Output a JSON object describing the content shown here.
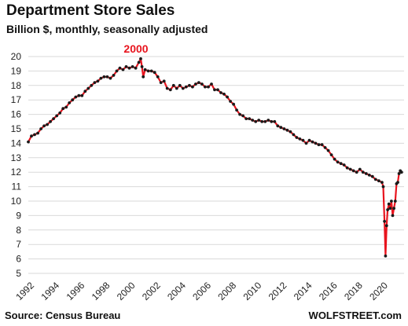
{
  "header": {
    "title": "Department  Store Sales",
    "subtitle": "Billion $, monthly, seasonally adjusted"
  },
  "footer": {
    "source": "Source: Census Bureau",
    "brand": "WOLFSTREET.com"
  },
  "colors": {
    "line": "#e8141e",
    "marker": "#1a1a1a",
    "annotation": "#e8141e",
    "grid": "#d9d9d9"
  },
  "chart_data": {
    "type": "line",
    "title": "Department  Store Sales",
    "subtitle": "Billion $, monthly, seasonally adjusted",
    "xlabel": "",
    "ylabel": "",
    "xlim": [
      1992,
      2021.75
    ],
    "ylim": [
      5,
      20
    ],
    "x_ticks": [
      "1992",
      "1994",
      "1996",
      "1998",
      "2000",
      "2002",
      "2004",
      "2006",
      "2008",
      "2010",
      "2012",
      "2014",
      "2016",
      "2018",
      "2020"
    ],
    "y_ticks": [
      "5",
      "6",
      "7",
      "8",
      "9",
      "10",
      "11",
      "12",
      "13",
      "14",
      "15",
      "16",
      "17",
      "18",
      "19",
      "20"
    ],
    "grid": {
      "horizontal": true,
      "vertical": false
    },
    "annotations": [
      {
        "text": "2000",
        "x": 2000.9,
        "y": 19.85
      }
    ],
    "series": [
      {
        "values": [
          [
            1992.0,
            14.1
          ],
          [
            1992.25,
            14.5
          ],
          [
            1992.5,
            14.6
          ],
          [
            1992.75,
            14.7
          ],
          [
            1993.0,
            15.0
          ],
          [
            1993.25,
            15.2
          ],
          [
            1993.5,
            15.3
          ],
          [
            1993.75,
            15.5
          ],
          [
            1994.0,
            15.7
          ],
          [
            1994.25,
            15.9
          ],
          [
            1994.5,
            16.1
          ],
          [
            1994.75,
            16.4
          ],
          [
            1995.0,
            16.5
          ],
          [
            1995.25,
            16.8
          ],
          [
            1995.5,
            17.0
          ],
          [
            1995.75,
            17.2
          ],
          [
            1996.0,
            17.3
          ],
          [
            1996.25,
            17.3
          ],
          [
            1996.5,
            17.6
          ],
          [
            1996.75,
            17.8
          ],
          [
            1997.0,
            18.0
          ],
          [
            1997.25,
            18.2
          ],
          [
            1997.5,
            18.3
          ],
          [
            1997.75,
            18.5
          ],
          [
            1998.0,
            18.6
          ],
          [
            1998.25,
            18.6
          ],
          [
            1998.5,
            18.5
          ],
          [
            1998.75,
            18.7
          ],
          [
            1999.0,
            19.0
          ],
          [
            1999.25,
            19.2
          ],
          [
            1999.5,
            19.1
          ],
          [
            1999.75,
            19.3
          ],
          [
            2000.0,
            19.2
          ],
          [
            2000.25,
            19.3
          ],
          [
            2000.5,
            19.2
          ],
          [
            2000.75,
            19.6
          ],
          [
            2000.9,
            19.85
          ],
          [
            2001.0,
            19.3
          ],
          [
            2001.1,
            18.6
          ],
          [
            2001.25,
            19.1
          ],
          [
            2001.5,
            19.0
          ],
          [
            2001.75,
            19.0
          ],
          [
            2002.0,
            18.9
          ],
          [
            2002.25,
            18.6
          ],
          [
            2002.5,
            18.2
          ],
          [
            2002.75,
            18.3
          ],
          [
            2003.0,
            17.8
          ],
          [
            2003.25,
            17.7
          ],
          [
            2003.5,
            18.0
          ],
          [
            2003.75,
            17.8
          ],
          [
            2004.0,
            18.0
          ],
          [
            2004.25,
            17.8
          ],
          [
            2004.5,
            17.9
          ],
          [
            2004.75,
            18.0
          ],
          [
            2005.0,
            17.9
          ],
          [
            2005.25,
            18.1
          ],
          [
            2005.5,
            18.2
          ],
          [
            2005.75,
            18.1
          ],
          [
            2006.0,
            17.9
          ],
          [
            2006.25,
            17.9
          ],
          [
            2006.5,
            18.1
          ],
          [
            2006.75,
            17.7
          ],
          [
            2007.0,
            17.7
          ],
          [
            2007.25,
            17.5
          ],
          [
            2007.5,
            17.4
          ],
          [
            2007.75,
            17.2
          ],
          [
            2008.0,
            16.9
          ],
          [
            2008.25,
            16.7
          ],
          [
            2008.5,
            16.3
          ],
          [
            2008.75,
            16.0
          ],
          [
            2009.0,
            15.9
          ],
          [
            2009.25,
            15.7
          ],
          [
            2009.5,
            15.7
          ],
          [
            2009.75,
            15.6
          ],
          [
            2010.0,
            15.5
          ],
          [
            2010.25,
            15.6
          ],
          [
            2010.5,
            15.5
          ],
          [
            2010.75,
            15.5
          ],
          [
            2011.0,
            15.6
          ],
          [
            2011.25,
            15.5
          ],
          [
            2011.5,
            15.5
          ],
          [
            2011.75,
            15.2
          ],
          [
            2012.0,
            15.1
          ],
          [
            2012.25,
            15.0
          ],
          [
            2012.5,
            14.9
          ],
          [
            2012.75,
            14.8
          ],
          [
            2013.0,
            14.6
          ],
          [
            2013.25,
            14.4
          ],
          [
            2013.5,
            14.3
          ],
          [
            2013.75,
            14.2
          ],
          [
            2014.0,
            14.0
          ],
          [
            2014.25,
            14.2
          ],
          [
            2014.5,
            14.1
          ],
          [
            2014.75,
            14.0
          ],
          [
            2015.0,
            13.9
          ],
          [
            2015.25,
            13.9
          ],
          [
            2015.5,
            13.7
          ],
          [
            2015.75,
            13.5
          ],
          [
            2016.0,
            13.2
          ],
          [
            2016.25,
            12.9
          ],
          [
            2016.5,
            12.7
          ],
          [
            2016.75,
            12.6
          ],
          [
            2017.0,
            12.5
          ],
          [
            2017.25,
            12.3
          ],
          [
            2017.5,
            12.2
          ],
          [
            2017.75,
            12.1
          ],
          [
            2018.0,
            12.0
          ],
          [
            2018.25,
            12.2
          ],
          [
            2018.5,
            12.0
          ],
          [
            2018.75,
            11.9
          ],
          [
            2019.0,
            11.8
          ],
          [
            2019.25,
            11.7
          ],
          [
            2019.5,
            11.5
          ],
          [
            2019.75,
            11.4
          ],
          [
            2020.0,
            11.3
          ],
          [
            2020.1,
            11.0
          ],
          [
            2020.2,
            8.6
          ],
          [
            2020.28,
            6.2
          ],
          [
            2020.37,
            8.3
          ],
          [
            2020.45,
            9.4
          ],
          [
            2020.55,
            9.8
          ],
          [
            2020.65,
            9.5
          ],
          [
            2020.75,
            10.0
          ],
          [
            2020.85,
            9.0
          ],
          [
            2020.95,
            9.5
          ],
          [
            2021.05,
            10.0
          ],
          [
            2021.15,
            11.2
          ],
          [
            2021.25,
            11.3
          ],
          [
            2021.35,
            11.9
          ],
          [
            2021.45,
            12.1
          ],
          [
            2021.55,
            12.0
          ]
        ]
      }
    ]
  }
}
